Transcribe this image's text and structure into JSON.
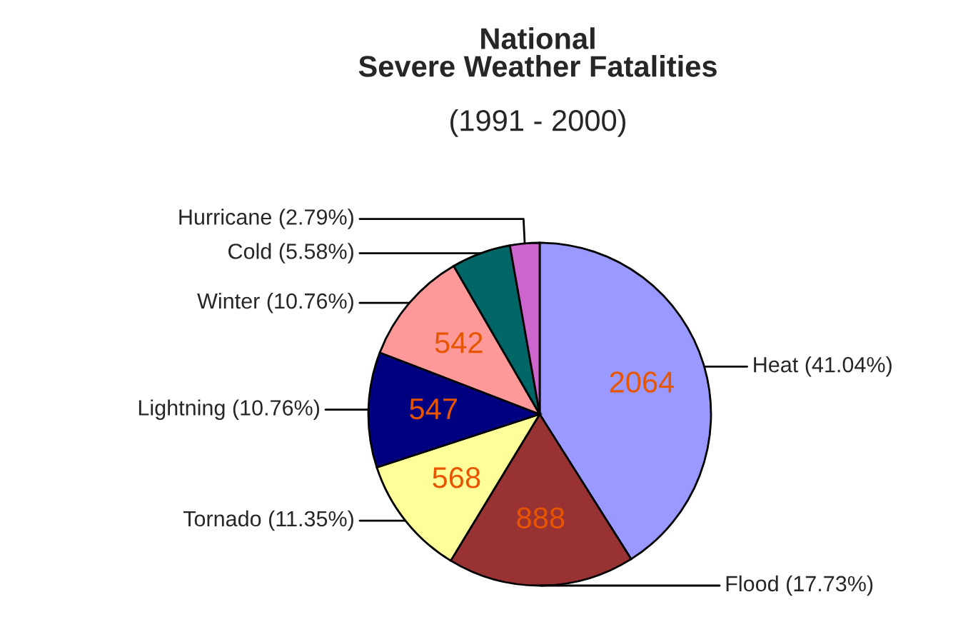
{
  "chart_data": {
    "type": "pie",
    "title": "National\nSevere Weather Fatalities",
    "subtitle": "(1991 - 2000)",
    "categories": [
      "Heat (41.04%)",
      "Flood (17.73%)",
      "Tornado (11.35%)",
      "Lightning (10.76%)",
      "Winter (10.76%)",
      "Cold (5.58%)",
      "Hurricane (2.79%)"
    ],
    "values": [
      2064,
      888,
      568,
      547,
      542,
      281,
      140
    ],
    "colors": [
      "#9999ff",
      "#993333",
      "#ffff99",
      "#000080",
      "#ff9999",
      "#006666",
      "#cc66cc"
    ],
    "value_labels": [
      "2064",
      "888",
      "568",
      "547",
      "542",
      null,
      null
    ]
  }
}
